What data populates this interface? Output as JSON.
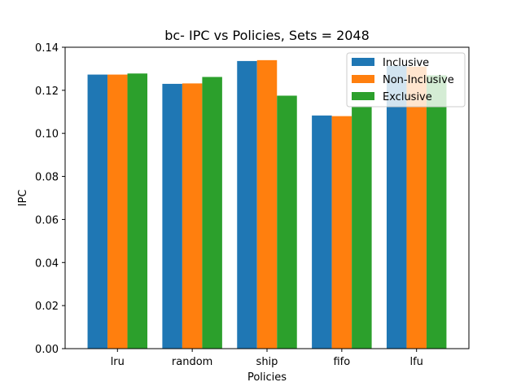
{
  "chart_data": {
    "type": "bar",
    "title": "bc- IPC vs Policies, Sets = 2048",
    "xlabel": "Policies",
    "ylabel": "IPC",
    "categories": [
      "lru",
      "random",
      "ship",
      "fifo",
      "lfu"
    ],
    "series": [
      {
        "name": "Inclusive",
        "color": "#1f77b4",
        "values": [
          0.1273,
          0.123,
          0.1336,
          0.1083,
          0.1315
        ]
      },
      {
        "name": "Non-Inclusive",
        "color": "#ff7f0e",
        "values": [
          0.1273,
          0.1232,
          0.134,
          0.108,
          0.131
        ]
      },
      {
        "name": "Exclusive",
        "color": "#2ca02c",
        "values": [
          0.1278,
          0.1262,
          0.1175,
          0.1125,
          0.127
        ]
      }
    ],
    "ylim": [
      0,
      0.14
    ],
    "yticks": [
      "0.00",
      "0.02",
      "0.04",
      "0.06",
      "0.08",
      "0.10",
      "0.12",
      "0.14"
    ],
    "grid": false,
    "legend_position": "top-right"
  }
}
